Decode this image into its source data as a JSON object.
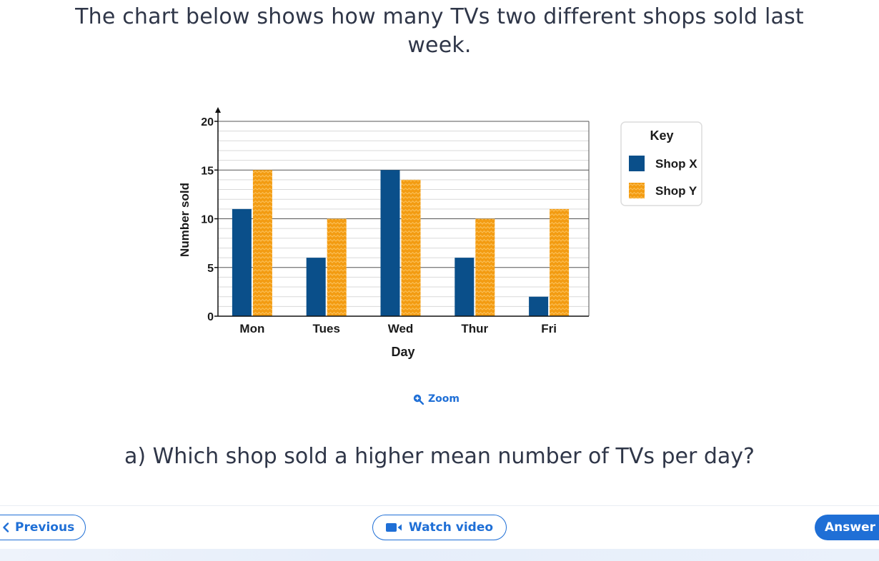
{
  "intro": {
    "line1": "The chart below shows how many TVs two different shops sold last",
    "line2": "week."
  },
  "chart_data": {
    "type": "bar",
    "categories": [
      "Mon",
      "Tues",
      "Wed",
      "Thur",
      "Fri"
    ],
    "series": [
      {
        "name": "Shop X",
        "values": [
          11,
          6,
          15,
          6,
          2
        ],
        "color": "#0a4f8a"
      },
      {
        "name": "Shop Y",
        "values": [
          15,
          10,
          14,
          10,
          11
        ],
        "color": "#f39c12"
      }
    ],
    "xlabel": "Day",
    "ylabel": "Number sold",
    "ylim": [
      0,
      20
    ],
    "yticks": [
      0,
      5,
      10,
      15,
      20
    ],
    "grid": true,
    "legend": {
      "title": "Key",
      "placement": "right"
    }
  },
  "zoom": {
    "label": "Zoom",
    "icon": "zoom-in-icon"
  },
  "question": {
    "text": "a) Which shop sold a higher mean number of TVs per day?"
  },
  "footer": {
    "previous_label": "Previous",
    "previous_icon": "chevron-left-icon",
    "video_label": "Watch video",
    "video_icon": "video-camera-icon",
    "answer_label": "Answer"
  },
  "colors": {
    "accent": "#1f6fd6",
    "text": "#2f3648"
  }
}
